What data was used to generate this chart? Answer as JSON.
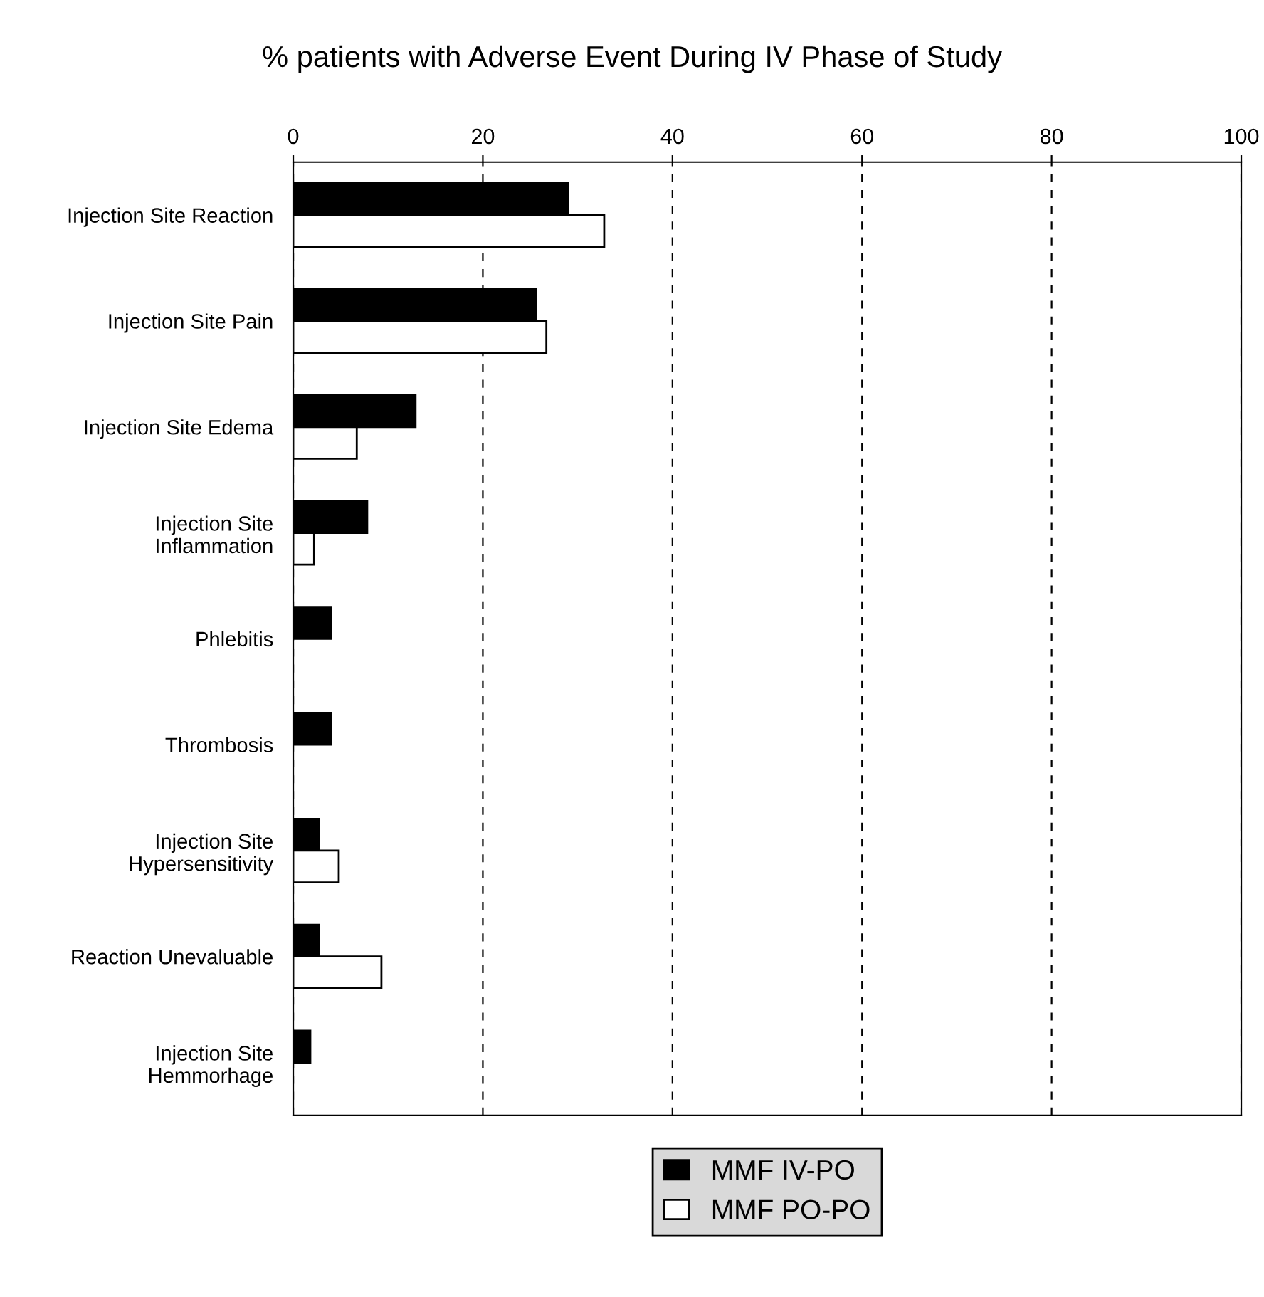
{
  "chart_data": {
    "type": "bar",
    "orientation": "horizontal",
    "title": "% patients with Adverse Event During IV Phase of Study",
    "categories": [
      "Injection Site Reaction",
      "Injection Site Pain",
      "Injection Site Edema",
      "Injection Site\nInflammation",
      "Phlebitis",
      "Thrombosis",
      "Injection Site\nHypersensitivity",
      "Reaction Unevaluable",
      "Injection Site\nHemmorhage"
    ],
    "series": [
      {
        "name": "MMF IV-PO",
        "color": "#000000",
        "values": [
          29,
          25.6,
          12.9,
          7.8,
          4,
          4,
          2.7,
          2.7,
          1.8
        ]
      },
      {
        "name": "MMF PO-PO",
        "color": "#ffffff",
        "values": [
          32.8,
          26.7,
          6.7,
          2.2,
          0,
          0,
          4.8,
          9.3,
          0
        ]
      }
    ],
    "xlim": [
      0,
      100
    ],
    "xticks": [
      0,
      20,
      40,
      60,
      80,
      100
    ],
    "grid": "x",
    "legend": "bottom"
  }
}
